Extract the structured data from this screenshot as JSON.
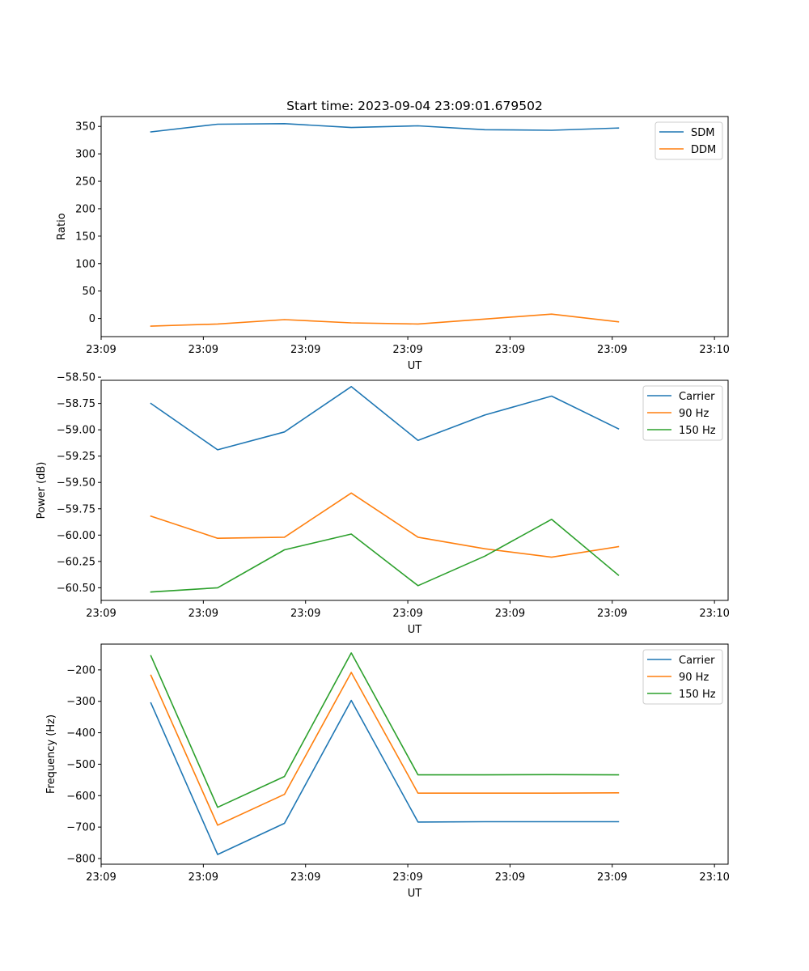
{
  "chart_data": [
    {
      "type": "line",
      "title": "Start time: 2023-09-04 23:09:01.679502",
      "xlabel": "UT",
      "ylabel": "Ratio",
      "xlim": [
        0,
        9.2
      ],
      "ylim": [
        -33,
        368
      ],
      "xticks": [
        {
          "v": 0,
          "label": "23:09"
        },
        {
          "v": 1.5,
          "label": "23:09"
        },
        {
          "v": 3,
          "label": "23:09"
        },
        {
          "v": 4.5,
          "label": "23:09"
        },
        {
          "v": 6,
          "label": "23:09"
        },
        {
          "v": 7.5,
          "label": "23:09"
        },
        {
          "v": 9,
          "label": "23:10"
        }
      ],
      "yticks": [
        {
          "v": 0,
          "label": "0"
        },
        {
          "v": 50,
          "label": "50"
        },
        {
          "v": 100,
          "label": "100"
        },
        {
          "v": 150,
          "label": "150"
        },
        {
          "v": 200,
          "label": "200"
        },
        {
          "v": 250,
          "label": "250"
        },
        {
          "v": 300,
          "label": "300"
        },
        {
          "v": 350,
          "label": "350"
        }
      ],
      "x": [
        0.73,
        1.71,
        2.69,
        3.67,
        4.65,
        5.63,
        6.61,
        7.59
      ],
      "legend_position": "upper right",
      "series": [
        {
          "name": "SDM",
          "color": "#1f77b4",
          "values": [
            340,
            354,
            355,
            348,
            351,
            344,
            343,
            347
          ]
        },
        {
          "name": "DDM",
          "color": "#ff7f0e",
          "values": [
            -14,
            -10,
            -2,
            -8,
            -10,
            -1,
            8,
            -6
          ]
        }
      ]
    },
    {
      "type": "line",
      "title": "",
      "xlabel": "UT",
      "ylabel": "Power (dB)",
      "xlim": [
        0,
        9.2
      ],
      "ylim": [
        -60.62,
        -58.53
      ],
      "xticks": [
        {
          "v": 0,
          "label": "23:09"
        },
        {
          "v": 1.5,
          "label": "23:09"
        },
        {
          "v": 3,
          "label": "23:09"
        },
        {
          "v": 4.5,
          "label": "23:09"
        },
        {
          "v": 6,
          "label": "23:09"
        },
        {
          "v": 7.5,
          "label": "23:09"
        },
        {
          "v": 9,
          "label": "23:10"
        }
      ],
      "yticks": [
        {
          "v": -60.5,
          "label": "−60.50"
        },
        {
          "v": -60.25,
          "label": "−60.25"
        },
        {
          "v": -60.0,
          "label": "−60.00"
        },
        {
          "v": -59.75,
          "label": "−59.75"
        },
        {
          "v": -59.5,
          "label": "−59.50"
        },
        {
          "v": -59.25,
          "label": "−59.25"
        },
        {
          "v": -59.0,
          "label": "−59.00"
        },
        {
          "v": -58.75,
          "label": "−58.75"
        },
        {
          "v": -58.5,
          "label": "−58.50"
        }
      ],
      "x": [
        0.73,
        1.71,
        2.69,
        3.67,
        4.65,
        5.63,
        6.61,
        7.59
      ],
      "legend_position": "upper right",
      "series": [
        {
          "name": "Carrier",
          "color": "#1f77b4",
          "values": [
            -58.75,
            -59.19,
            -59.02,
            -58.59,
            -59.1,
            -58.86,
            -58.68,
            -58.99
          ]
        },
        {
          "name": "90 Hz",
          "color": "#ff7f0e",
          "values": [
            -59.82,
            -60.03,
            -60.02,
            -59.6,
            -60.02,
            -60.13,
            -60.21,
            -60.11
          ]
        },
        {
          "name": "150 Hz",
          "color": "#2ca02c",
          "values": [
            -60.54,
            -60.5,
            -60.14,
            -59.99,
            -60.48,
            -60.2,
            -59.85,
            -60.38
          ]
        }
      ]
    },
    {
      "type": "line",
      "title": "",
      "xlabel": "UT",
      "ylabel": "Frequency (Hz)",
      "xlim": [
        0,
        9.2
      ],
      "ylim": [
        -818,
        -118
      ],
      "xticks": [
        {
          "v": 0,
          "label": "23:09"
        },
        {
          "v": 1.5,
          "label": "23:09"
        },
        {
          "v": 3,
          "label": "23:09"
        },
        {
          "v": 4.5,
          "label": "23:09"
        },
        {
          "v": 6,
          "label": "23:09"
        },
        {
          "v": 7.5,
          "label": "23:09"
        },
        {
          "v": 9,
          "label": "23:10"
        }
      ],
      "yticks": [
        {
          "v": -800,
          "label": "−800"
        },
        {
          "v": -700,
          "label": "−700"
        },
        {
          "v": -600,
          "label": "−600"
        },
        {
          "v": -500,
          "label": "−500"
        },
        {
          "v": -400,
          "label": "−400"
        },
        {
          "v": -300,
          "label": "−300"
        },
        {
          "v": -200,
          "label": "−200"
        }
      ],
      "x": [
        0.73,
        1.71,
        2.69,
        3.67,
        4.65,
        5.63,
        6.61,
        7.59
      ],
      "legend_position": "upper right",
      "series": [
        {
          "name": "Carrier",
          "color": "#1f77b4",
          "values": [
            -305,
            -787,
            -688,
            -297,
            -684,
            -683,
            -683,
            -683
          ]
        },
        {
          "name": "90 Hz",
          "color": "#ff7f0e",
          "values": [
            -217,
            -694,
            -596,
            -208,
            -592,
            -592,
            -592,
            -591
          ]
        },
        {
          "name": "150 Hz",
          "color": "#2ca02c",
          "values": [
            -155,
            -637,
            -539,
            -146,
            -534,
            -534,
            -533,
            -534
          ]
        }
      ]
    }
  ]
}
